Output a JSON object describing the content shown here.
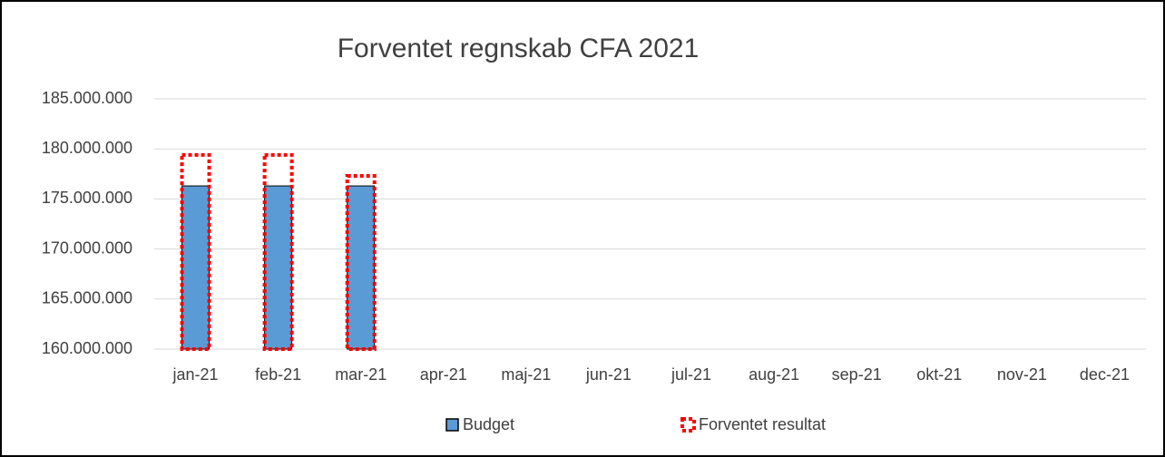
{
  "chart_data": {
    "type": "bar",
    "title": "Forventet regnskab CFA 2021",
    "categories": [
      "jan-21",
      "feb-21",
      "mar-21",
      "apr-21",
      "maj-21",
      "jun-21",
      "jul-21",
      "aug-21",
      "sep-21",
      "okt-21",
      "nov-21",
      "dec-21"
    ],
    "series": [
      {
        "name": "Budget",
        "color": "#5b9bd5",
        "values": [
          176300000,
          176300000,
          176300000,
          null,
          null,
          null,
          null,
          null,
          null,
          null,
          null,
          null
        ]
      },
      {
        "name": "Forventet resultat",
        "color": "#ff0000",
        "values": [
          179400000,
          179400000,
          177300000,
          null,
          null,
          null,
          null,
          null,
          null,
          null,
          null,
          null
        ]
      }
    ],
    "ylim": [
      160000000,
      185000000
    ],
    "yticks": [
      {
        "value": 160000000,
        "label": "160.000.000"
      },
      {
        "value": 165000000,
        "label": "165.000.000"
      },
      {
        "value": 170000000,
        "label": "170.000.000"
      },
      {
        "value": 175000000,
        "label": "175.000.000"
      },
      {
        "value": 180000000,
        "label": "180.000.000"
      },
      {
        "value": 185000000,
        "label": "185.000.000"
      }
    ],
    "grid": true,
    "legend": "bottom"
  }
}
